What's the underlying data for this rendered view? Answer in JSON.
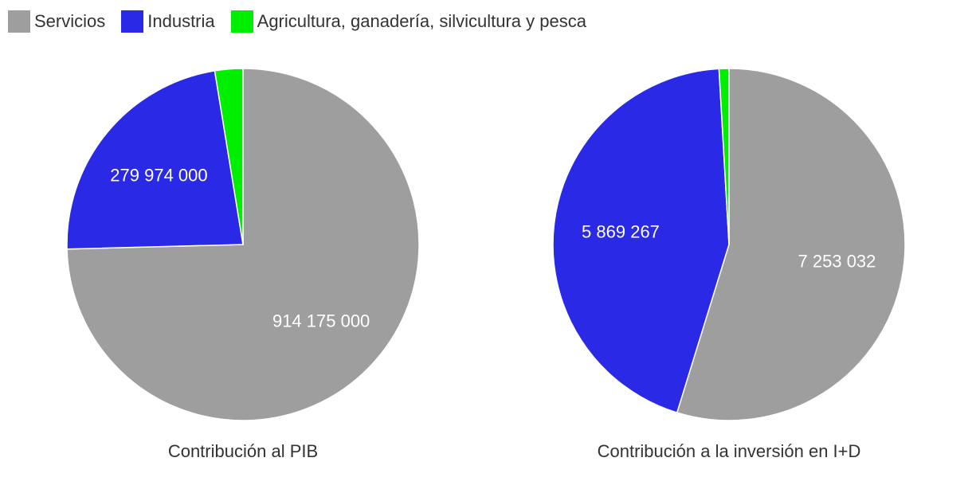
{
  "legend": {
    "items": [
      {
        "label": "Servicios",
        "color": "#9e9e9e"
      },
      {
        "label": "Industria",
        "color": "#2929e6"
      },
      {
        "label": "Agricultura, ganadería, silvicultura y pesca",
        "color": "#00ee00"
      }
    ]
  },
  "chart_data": [
    {
      "type": "pie",
      "title": "Contribución al PIB",
      "categories": [
        "Servicios",
        "Industria",
        "Agricultura, ganadería, silvicultura y pesca"
      ],
      "values": [
        914175000,
        279974000,
        31500000
      ],
      "data_labels": [
        "914 175 000",
        "279 974 000",
        ""
      ],
      "colors": [
        "#9e9e9e",
        "#2929e6",
        "#00ee00"
      ],
      "legend_position": "top-left"
    },
    {
      "type": "pie",
      "title": "Contribución a la inversión en I+D",
      "categories": [
        "Servicios",
        "Industria",
        "Agricultura, ganadería, silvicultura y pesca"
      ],
      "values": [
        7253032,
        5869267,
        120000
      ],
      "data_labels": [
        "7 253 032",
        "5 869 267",
        ""
      ],
      "colors": [
        "#9e9e9e",
        "#2929e6",
        "#00ee00"
      ],
      "legend_position": "top-left"
    }
  ]
}
